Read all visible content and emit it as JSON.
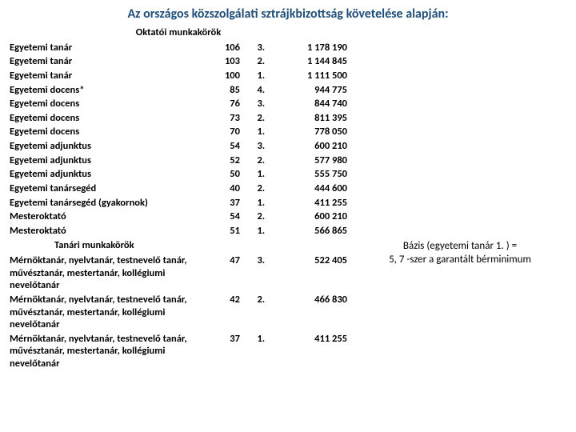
{
  "title": "Az országos közszolgálati sztrájkbizottság követelése alapján:",
  "section1_header": "Oktatói munkakörök",
  "section2_header": "Tanári munkakörök",
  "rows1": [
    {
      "name": "Egyetemi tanár",
      "a": "106",
      "b": "3.",
      "c": "1 178 190"
    },
    {
      "name": "Egyetemi tanár",
      "a": "103",
      "b": "2.",
      "c": "1 144 845"
    },
    {
      "name": "Egyetemi tanár",
      "a": "100",
      "b": "1.",
      "c": "1 111 500"
    },
    {
      "name": "Egyetemi docens*",
      "a": "85",
      "b": "4.",
      "c": "944 775"
    },
    {
      "name": "Egyetemi docens",
      "a": "76",
      "b": "3.",
      "c": "844 740"
    },
    {
      "name": "Egyetemi docens",
      "a": "73",
      "b": "2.",
      "c": "811 395"
    },
    {
      "name": "Egyetemi docens",
      "a": "70",
      "b": "1.",
      "c": "778 050"
    },
    {
      "name": "Egyetemi adjunktus",
      "a": "54",
      "b": "3.",
      "c": "600 210"
    },
    {
      "name": "Egyetemi adjunktus",
      "a": "52",
      "b": "2.",
      "c": "577 980"
    },
    {
      "name": "Egyetemi adjunktus",
      "a": "50",
      "b": "1.",
      "c": "555 750"
    },
    {
      "name": "Egyetemi tanársegéd",
      "a": "40",
      "b": "2.",
      "c": "444 600"
    },
    {
      "name": "Egyetemi tanársegéd (gyakornok)",
      "a": "37",
      "b": "1.",
      "c": "411 255"
    },
    {
      "name": "Mesteroktató",
      "a": "54",
      "b": "2.",
      "c": "600 210"
    },
    {
      "name": "Mesteroktató",
      "a": "51",
      "b": "1.",
      "c": "566 865"
    }
  ],
  "rows2": [
    {
      "name": "Mérnöktanár, nyelvtanár, testnevelő tanár, művésztanár, mestertanár, kollégiumi nevelőtanár",
      "a": "47",
      "b": "3.",
      "c": "522 405"
    },
    {
      "name": "Mérnöktanár, nyelvtanár, testnevelő tanár, művésztanár, mestertanár, kollégiumi nevelőtanár",
      "a": "42",
      "b": "2.",
      "c": "466 830"
    },
    {
      "name": "Mérnöktanár, nyelvtanár, testnevelő tanár, művésztanár, mestertanár, kollégiumi nevelőtanár",
      "a": "37",
      "b": "1.",
      "c": "411 255"
    }
  ],
  "sidenote_line1": "Bázis (egyetemi tanár 1. ) =",
  "sidenote_line2": "5, 7 -szer a garantált bérminimum"
}
